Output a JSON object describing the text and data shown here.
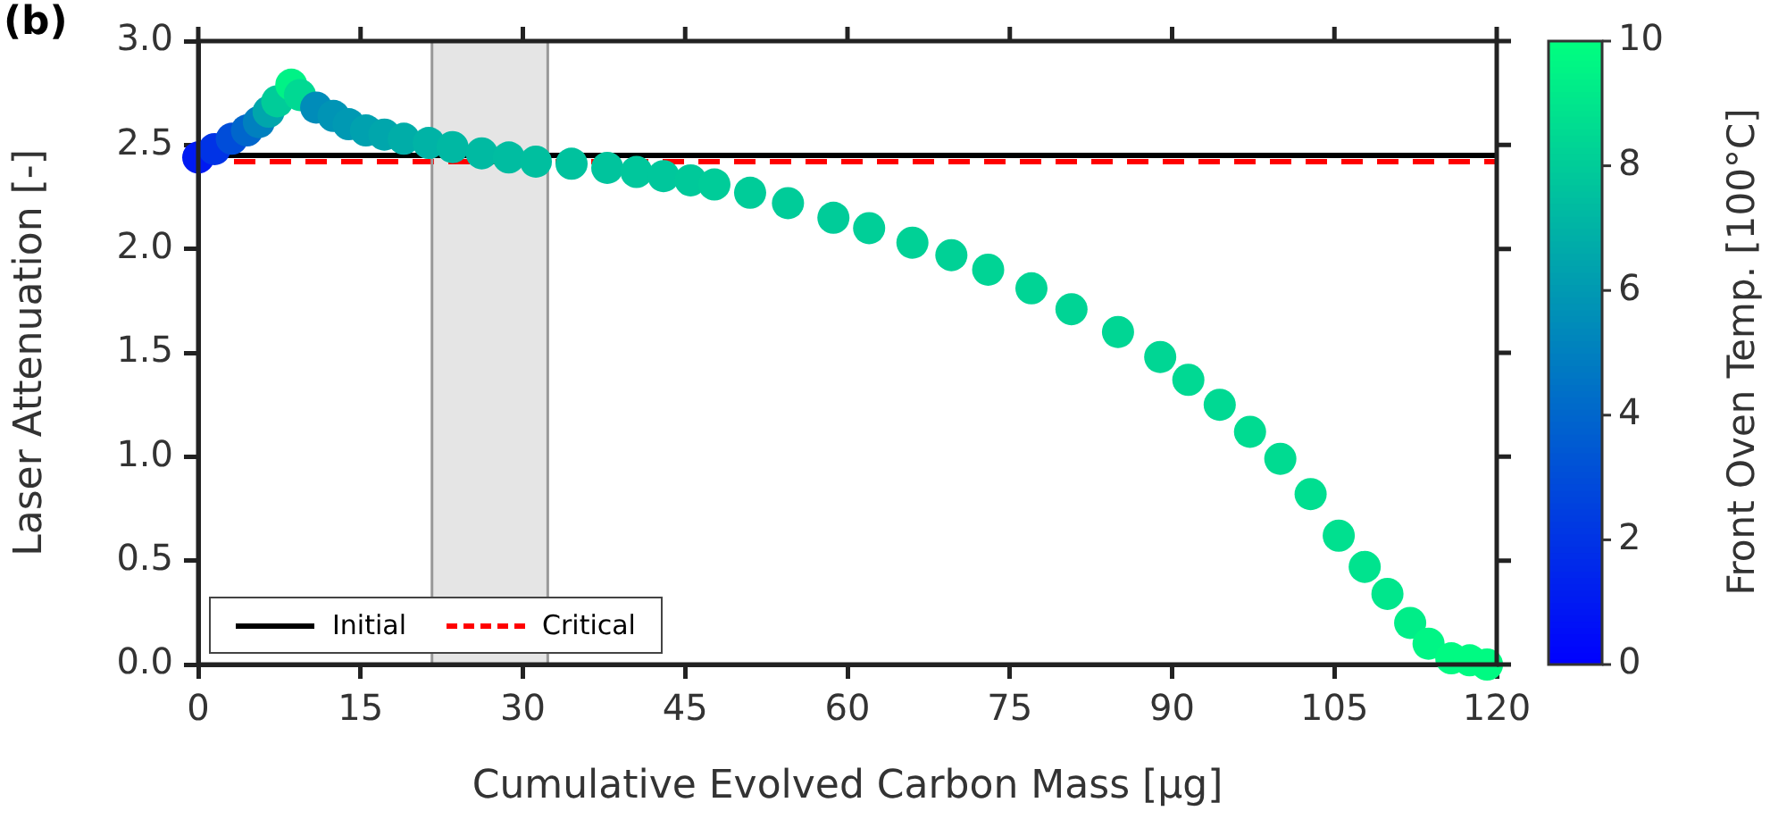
{
  "chart_data": {
    "type": "scatter",
    "xlabel": "Cumulative Evolved Carbon Mass [µg]",
    "ylabel": "Laser Attenuation [-]",
    "clabel": "Front Oven Temp. [100°C]",
    "annotations": [
      "(b)"
    ],
    "xlim": [
      0,
      120
    ],
    "xticks": [
      0,
      15,
      30,
      45,
      60,
      75,
      90,
      105,
      120
    ],
    "ylim": [
      0,
      3
    ],
    "yticks": [
      {
        "value": 0,
        "label": "0.0"
      },
      {
        "value": 0.5,
        "label": "0.5"
      },
      {
        "value": 1,
        "label": "1.0"
      },
      {
        "value": 1.5,
        "label": "1.5"
      },
      {
        "value": 2,
        "label": "2.0"
      },
      {
        "value": 2.5,
        "label": "2.5"
      },
      {
        "value": 3,
        "label": "3.0"
      }
    ],
    "clim": [
      0,
      10
    ],
    "cticks": [
      0,
      2,
      4,
      6,
      8,
      10
    ],
    "marker": "circle",
    "grid": false,
    "legend": "bottom left",
    "ref_lines": [
      {
        "axis": "y",
        "value": 2.45,
        "label": "Initial",
        "color": "#000000",
        "line_style": "solid"
      },
      {
        "axis": "y",
        "value": 2.42,
        "label": "Critical",
        "color": "#ff0000",
        "line_style": "dashed"
      },
      {
        "axis": "x",
        "value": 21.6,
        "color": "#999999",
        "line_style": "solid"
      },
      {
        "axis": "x",
        "value": 32.3,
        "color": "#999999",
        "line_style": "solid"
      }
    ],
    "bands": [
      {
        "axis": "x",
        "from": 21.6,
        "to": 32.3,
        "color": "#e5e5e5"
      }
    ],
    "series": [
      {
        "x": [
          0,
          1.5,
          3.1,
          4.5,
          5.6,
          6.5,
          7.3,
          8.6,
          9.4,
          10.9,
          12.5,
          13.9,
          15.5,
          17.2,
          19,
          21.3,
          23.5,
          26.2,
          28.7,
          31.2,
          34.5,
          37.8,
          40.5,
          43,
          45.5,
          47.7,
          51,
          54.5,
          58.7,
          62,
          66,
          69.6,
          73,
          77,
          80.7,
          85,
          88.9,
          91.5,
          94.4,
          97.2,
          100,
          102.8,
          105.4,
          107.8,
          109.9,
          112,
          113.7,
          115.8,
          117.5,
          119.1
        ],
        "values": [
          2.44,
          2.48,
          2.53,
          2.57,
          2.61,
          2.66,
          2.71,
          2.79,
          2.74,
          2.68,
          2.64,
          2.6,
          2.57,
          2.55,
          2.53,
          2.51,
          2.49,
          2.46,
          2.44,
          2.42,
          2.41,
          2.39,
          2.37,
          2.35,
          2.33,
          2.31,
          2.27,
          2.22,
          2.15,
          2.1,
          2.03,
          1.97,
          1.9,
          1.81,
          1.71,
          1.6,
          1.48,
          1.37,
          1.25,
          1.12,
          0.99,
          0.82,
          0.62,
          0.47,
          0.34,
          0.2,
          0.1,
          0.03,
          0.02,
          0
        ],
        "cvalues": [
          1,
          2,
          3,
          4,
          5,
          6.5,
          8,
          9.5,
          8.5,
          5.5,
          5.8,
          6,
          6.3,
          6.5,
          6.8,
          7,
          7.2,
          7.3,
          7.4,
          7.5,
          7.6,
          7.7,
          7.8,
          7.8,
          7.9,
          8,
          8,
          8,
          8,
          8.1,
          8.2,
          8.2,
          8.3,
          8.3,
          8.3,
          8.4,
          8.4,
          8.5,
          8.5,
          8.6,
          8.6,
          8.7,
          8.8,
          8.9,
          9,
          9.3,
          9.6,
          9.8,
          9.8,
          9.8
        ]
      }
    ]
  }
}
